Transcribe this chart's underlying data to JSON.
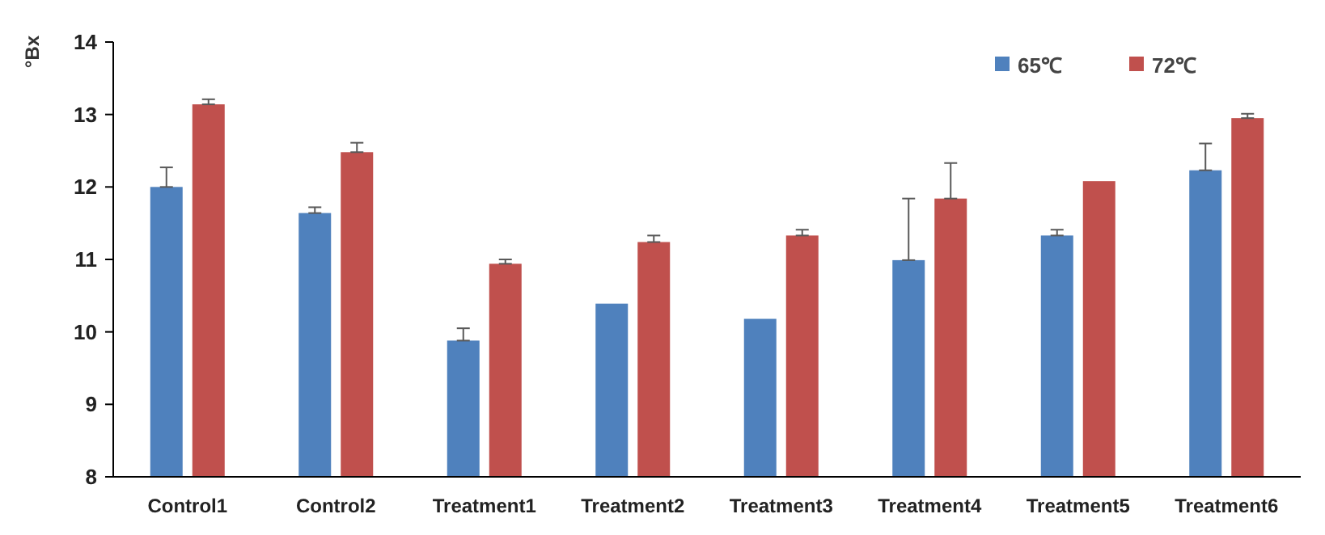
{
  "chart_data": {
    "type": "bar",
    "ylabel": "°Bx",
    "categories": [
      "Control1",
      "Control2",
      "Treatment1",
      "Treatment2",
      "Treatment3",
      "Treatment4",
      "Treatment5",
      "Treatment6"
    ],
    "series": [
      {
        "name": "65℃",
        "color": "#4f81bd",
        "values": [
          12.0,
          11.64,
          9.88,
          10.39,
          10.18,
          10.99,
          11.33,
          12.23
        ],
        "errors": [
          [
            12.0,
            12.27
          ],
          [
            11.64,
            11.72
          ],
          [
            9.88,
            10.05
          ],
          null,
          null,
          [
            10.99,
            11.84
          ],
          [
            11.33,
            11.41
          ],
          [
            12.23,
            12.6
          ]
        ]
      },
      {
        "name": "72℃",
        "color": "#c0504d",
        "values": [
          13.14,
          12.48,
          10.94,
          11.24,
          11.33,
          11.84,
          12.08,
          12.95
        ],
        "errors": [
          [
            13.14,
            13.21
          ],
          [
            12.48,
            12.61
          ],
          [
            10.94,
            11.0
          ],
          [
            11.24,
            11.33
          ],
          [
            11.33,
            11.41
          ],
          [
            11.84,
            12.33
          ],
          null,
          [
            12.95,
            13.01
          ]
        ]
      }
    ],
    "ylim": [
      8,
      14
    ],
    "yticks": [
      8,
      9,
      10,
      11,
      12,
      13,
      14
    ],
    "grid": false,
    "legend": "top right"
  }
}
